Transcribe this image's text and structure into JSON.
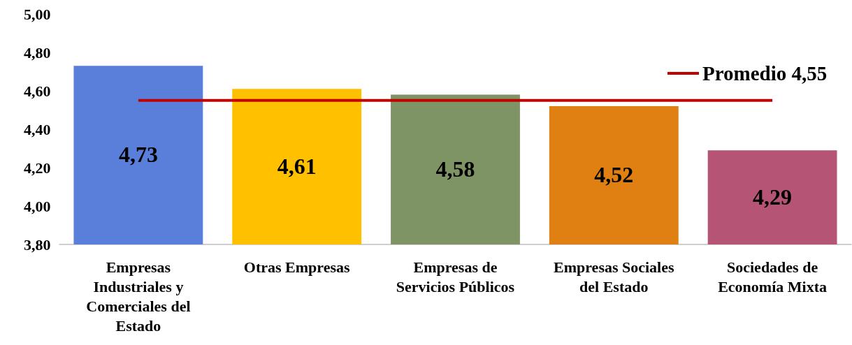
{
  "chart_data": {
    "type": "bar",
    "categories": [
      "Empresas Industriales y Comerciales del Estado",
      "Otras Empresas",
      "Empresas de Servicios Públicos",
      "Empresas Sociales del Estado",
      "Sociedades de Economía Mixta"
    ],
    "series": [
      {
        "values": [
          4.73,
          4.61,
          4.58,
          4.52,
          4.29
        ],
        "colors": [
          "#5a7fdb",
          "#ffc000",
          "#7f9464",
          "#e07f12",
          "#b55475"
        ],
        "value_labels": [
          "4,73",
          "4,61",
          "4,58",
          "4,52",
          "4,29"
        ]
      },
      {
        "type": "line",
        "name": "Promedio 4,55",
        "color": "#c00000",
        "values": [
          4.55,
          4.55,
          4.55,
          4.55,
          4.55
        ]
      }
    ],
    "ylim": [
      3.8,
      5.0
    ],
    "yticks": [
      {
        "value": 3.8,
        "label": "3,80"
      },
      {
        "value": 4.0,
        "label": "4,00"
      },
      {
        "value": 4.2,
        "label": "4,20"
      },
      {
        "value": 4.4,
        "label": "4,40"
      },
      {
        "value": 4.6,
        "label": "4,60"
      },
      {
        "value": 4.8,
        "label": "4,80"
      },
      {
        "value": 5.0,
        "label": "5,00"
      }
    ],
    "grid": false,
    "legend": "top right",
    "marker": "none"
  }
}
